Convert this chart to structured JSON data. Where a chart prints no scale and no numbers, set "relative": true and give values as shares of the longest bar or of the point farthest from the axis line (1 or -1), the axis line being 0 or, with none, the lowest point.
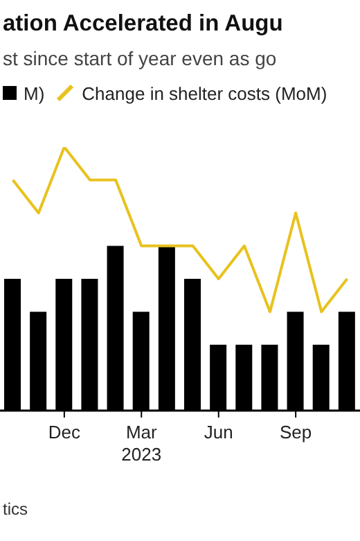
{
  "chart_data": {
    "type": "bar",
    "title": "ation Accelerated in Augu",
    "subtitle": "st since start of year even as go",
    "categories": [
      null,
      null,
      "Dec",
      null,
      null,
      "Mar\n2023",
      null,
      null,
      "Jun",
      null,
      null,
      "Sep",
      null,
      null
    ],
    "relative": true,
    "legend": "top",
    "grid": false,
    "series": [
      {
        "name": "M)",
        "color": "#000000",
        "values": [
          0.5,
          0.375,
          0.5,
          0.5,
          0.625,
          0.375,
          0.625,
          0.5,
          0.25,
          0.25,
          0.25,
          0.375,
          0.25,
          0.375
        ]
      },
      {
        "name": "Change in shelter costs (MoM)",
        "type": "line",
        "color": "#e8c21e",
        "values": [
          0.875,
          0.75,
          1,
          0.875,
          0.875,
          0.625,
          0.625,
          0.625,
          0.5,
          0.625,
          0.375,
          0.75,
          0.375,
          0.5
        ]
      }
    ],
    "annotations": [
      "tics"
    ]
  }
}
